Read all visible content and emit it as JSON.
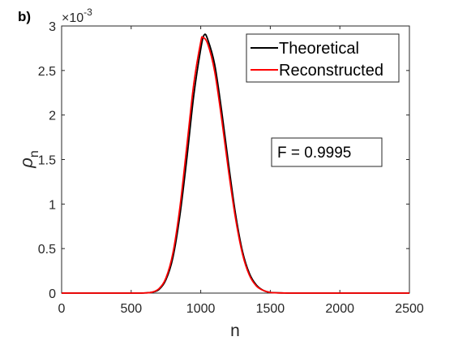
{
  "panel_label": "b)",
  "chart_data": {
    "type": "line",
    "xlabel": "n",
    "ylabel_symbol": "ρ",
    "ylabel_subscript": "n",
    "xlim": [
      0,
      2500
    ],
    "ylim": [
      0,
      0.003
    ],
    "xticks": [
      0,
      500,
      1000,
      1500,
      2000,
      2500
    ],
    "xtick_labels": [
      "0",
      "500",
      "1000",
      "1500",
      "2000",
      "2500"
    ],
    "yticks": [
      0,
      0.0005,
      0.001,
      0.0015,
      0.002,
      0.0025,
      0.003
    ],
    "ytick_labels": [
      "0",
      "0.5",
      "1",
      "1.5",
      "2",
      "2.5",
      "3"
    ],
    "y_exponent_base": "×10",
    "y_exponent_power": "-3",
    "grid": false,
    "legend_placement": "top-right",
    "series": [
      {
        "name": "Theoretical",
        "color": "#000000",
        "x": [
          0,
          500,
          600,
          650,
          700,
          750,
          800,
          850,
          900,
          950,
          1000,
          1025,
          1050,
          1100,
          1150,
          1200,
          1250,
          1300,
          1350,
          1400,
          1450,
          1500,
          1600,
          1700,
          2000,
          2500
        ],
        "y": [
          0,
          0,
          2e-06,
          1e-05,
          4e-05,
          0.00015,
          0.0004,
          0.00087,
          0.00151,
          0.00222,
          0.00274,
          0.0029,
          0.00285,
          0.00257,
          0.00205,
          0.00145,
          0.00089,
          0.00047,
          0.00022,
          9e-05,
          3e-05,
          8e-06,
          1e-06,
          0,
          0,
          0
        ]
      },
      {
        "name": "Reconstructed",
        "color": "#ff0000",
        "x": [
          0,
          500,
          600,
          650,
          700,
          750,
          800,
          850,
          900,
          950,
          1000,
          1015,
          1050,
          1100,
          1150,
          1200,
          1250,
          1300,
          1350,
          1400,
          1450,
          1500,
          1600,
          1700,
          2000,
          2500
        ],
        "y": [
          0,
          0,
          2e-06,
          1e-05,
          5e-05,
          0.00017,
          0.00045,
          0.00096,
          0.00165,
          0.00235,
          0.00282,
          0.00287,
          0.0028,
          0.00249,
          0.00196,
          0.00137,
          0.00084,
          0.00044,
          0.0002,
          8e-05,
          3e-05,
          7e-06,
          1e-06,
          0,
          0,
          0
        ]
      }
    ],
    "annotation": "F = 0.9995"
  }
}
